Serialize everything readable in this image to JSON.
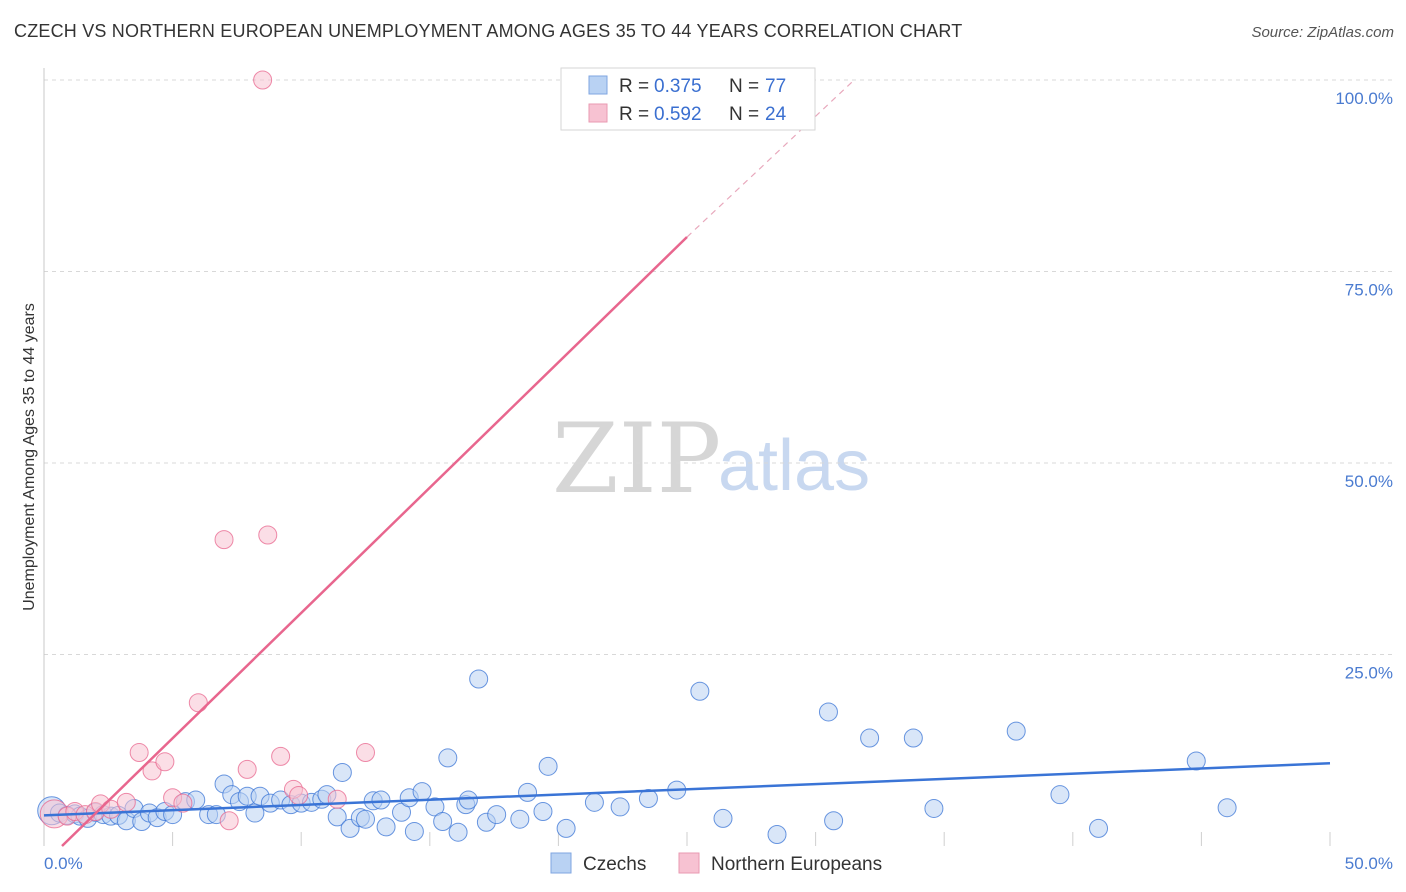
{
  "title": "CZECH VS NORTHERN EUROPEAN UNEMPLOYMENT AMONG AGES 35 TO 44 YEARS CORRELATION CHART",
  "source": "Source: ZipAtlas.com",
  "watermark": {
    "zip": "ZIP",
    "atlas": "atlas"
  },
  "colors": {
    "blue": "#3a74d6",
    "blue_fill": "#b9d2f3",
    "pink": "#e8668e",
    "pink_fill": "#f7c2d2",
    "grid": "#d8d8d8"
  },
  "legend": {
    "rows": [
      {
        "r_label": "R =",
        "r_value": "0.375",
        "n_label": "N =",
        "n_value": "77"
      },
      {
        "r_label": "R =",
        "r_value": "0.592",
        "n_label": "N =",
        "n_value": "24"
      }
    ],
    "bottom": [
      "Czechs",
      "Northern Europeans"
    ]
  },
  "chart_data": {
    "type": "scatter",
    "title": "CZECH VS NORTHERN EUROPEAN UNEMPLOYMENT AMONG AGES 35 TO 44 YEARS CORRELATION CHART",
    "xlabel": "",
    "ylabel": "Unemployment Among Ages 35 to 44 years",
    "xlim": [
      0,
      50
    ],
    "ylim": [
      0,
      100
    ],
    "x_tick_labels": [
      "0.0%",
      "50.0%"
    ],
    "y_ticks": [
      25,
      50,
      75,
      100
    ],
    "y_tick_labels": [
      "25.0%",
      "50.0%",
      "75.0%",
      "100.0%"
    ],
    "legend_position": "top-center",
    "series": [
      {
        "name": "Czechs",
        "r": 0.375,
        "n": 77,
        "trend": {
          "x0": 0,
          "y0": 4.0,
          "x1": 50,
          "y1": 10.8
        },
        "points": [
          [
            0.3,
            4.6
          ],
          [
            0.6,
            4.3
          ],
          [
            0.9,
            4.0
          ],
          [
            1.2,
            4.2
          ],
          [
            1.4,
            3.9
          ],
          [
            1.7,
            3.6
          ],
          [
            2.0,
            4.4
          ],
          [
            2.3,
            4.1
          ],
          [
            2.6,
            3.9
          ],
          [
            2.9,
            4.0
          ],
          [
            3.2,
            3.3
          ],
          [
            3.5,
            4.9
          ],
          [
            3.8,
            3.2
          ],
          [
            4.1,
            4.3
          ],
          [
            4.4,
            3.7
          ],
          [
            4.7,
            4.5
          ],
          [
            5.0,
            4.1
          ],
          [
            5.5,
            5.8
          ],
          [
            5.9,
            6.0
          ],
          [
            6.4,
            4.1
          ],
          [
            6.7,
            4.1
          ],
          [
            7.0,
            8.1
          ],
          [
            7.3,
            6.7
          ],
          [
            7.6,
            5.8
          ],
          [
            7.9,
            6.5
          ],
          [
            8.2,
            4.3
          ],
          [
            8.4,
            6.5
          ],
          [
            8.8,
            5.6
          ],
          [
            9.2,
            6.0
          ],
          [
            9.6,
            5.4
          ],
          [
            10.0,
            5.6
          ],
          [
            10.4,
            5.7
          ],
          [
            10.8,
            6.1
          ],
          [
            11.0,
            6.7
          ],
          [
            11.4,
            3.8
          ],
          [
            11.6,
            9.6
          ],
          [
            11.9,
            2.3
          ],
          [
            12.3,
            3.7
          ],
          [
            12.5,
            3.5
          ],
          [
            12.8,
            5.9
          ],
          [
            13.1,
            6.0
          ],
          [
            13.3,
            2.5
          ],
          [
            13.9,
            4.4
          ],
          [
            14.2,
            6.3
          ],
          [
            14.4,
            1.9
          ],
          [
            14.7,
            7.1
          ],
          [
            15.2,
            5.1
          ],
          [
            15.5,
            3.2
          ],
          [
            15.7,
            11.5
          ],
          [
            16.1,
            1.8
          ],
          [
            16.4,
            5.4
          ],
          [
            16.5,
            6.0
          ],
          [
            16.9,
            21.8
          ],
          [
            17.2,
            3.1
          ],
          [
            17.6,
            4.1
          ],
          [
            18.5,
            3.5
          ],
          [
            18.8,
            7.0
          ],
          [
            19.4,
            4.5
          ],
          [
            19.6,
            10.4
          ],
          [
            20.3,
            2.3
          ],
          [
            21.4,
            5.7
          ],
          [
            22.4,
            5.1
          ],
          [
            23.5,
            6.2
          ],
          [
            24.6,
            7.3
          ],
          [
            25.5,
            20.2
          ],
          [
            26.4,
            3.6
          ],
          [
            28.5,
            1.5
          ],
          [
            30.5,
            17.5
          ],
          [
            30.7,
            3.3
          ],
          [
            32.1,
            14.1
          ],
          [
            33.8,
            14.1
          ],
          [
            34.6,
            4.9
          ],
          [
            37.8,
            15.0
          ],
          [
            39.5,
            6.7
          ],
          [
            41.0,
            2.3
          ],
          [
            44.8,
            11.1
          ],
          [
            46.0,
            5.0
          ]
        ]
      },
      {
        "name": "Northern Europeans",
        "r": 0.592,
        "n": 24,
        "trend": {
          "x0": 0.7,
          "y0": 0,
          "x1": 25,
          "y1": 79.5
        },
        "trend_dashed": {
          "x0": 25,
          "y0": 79.5,
          "x1": 31.5,
          "y1": 100
        },
        "points": [
          [
            0.4,
            4.2
          ],
          [
            0.9,
            3.9
          ],
          [
            1.2,
            4.5
          ],
          [
            1.6,
            4.1
          ],
          [
            2.0,
            4.5
          ],
          [
            2.2,
            5.5
          ],
          [
            2.6,
            4.8
          ],
          [
            3.2,
            5.7
          ],
          [
            3.7,
            12.2
          ],
          [
            4.2,
            9.8
          ],
          [
            4.7,
            11.0
          ],
          [
            5.0,
            6.3
          ],
          [
            5.4,
            5.6
          ],
          [
            6.0,
            18.7
          ],
          [
            7.0,
            40.0
          ],
          [
            7.2,
            3.3
          ],
          [
            7.9,
            10.0
          ],
          [
            8.5,
            100.0
          ],
          [
            8.7,
            40.6
          ],
          [
            9.2,
            11.7
          ],
          [
            9.7,
            7.4
          ],
          [
            9.9,
            6.6
          ],
          [
            11.4,
            6.1
          ],
          [
            12.5,
            12.2
          ]
        ]
      }
    ]
  }
}
